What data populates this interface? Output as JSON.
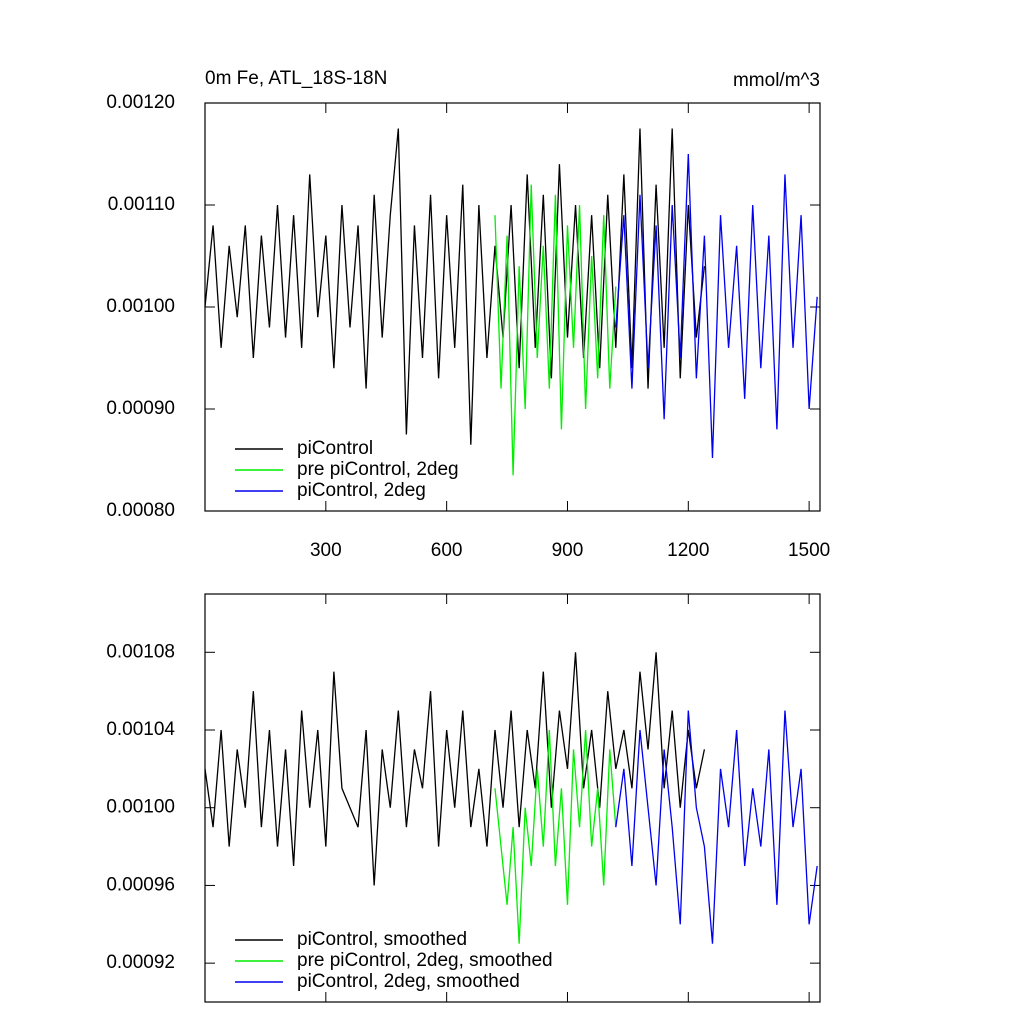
{
  "chart_data": [
    {
      "type": "line",
      "title": "0m Fe, ATL_18S-18N",
      "units": "mmol/m^3",
      "legend": "lower left",
      "xlim": [
        0,
        1527
      ],
      "xticks": [
        300,
        600,
        900,
        1200,
        1500
      ],
      "ylim": [
        0.0008,
        0.0012
      ],
      "yticks": [
        {
          "value": 0.0008,
          "label": "0.00080"
        },
        {
          "value": 0.0009,
          "label": "0.00090"
        },
        {
          "value": 0.001,
          "label": "0.00100"
        },
        {
          "value": 0.0011,
          "label": "0.00110"
        },
        {
          "value": 0.0012,
          "label": "0.00120"
        }
      ],
      "series": [
        {
          "name": "piControl",
          "color": "#000000",
          "x": [
            0,
            20,
            40,
            60,
            80,
            100,
            120,
            140,
            160,
            180,
            200,
            220,
            240,
            260,
            280,
            300,
            320,
            340,
            360,
            380,
            400,
            420,
            440,
            460,
            480,
            500,
            520,
            540,
            560,
            580,
            600,
            620,
            640,
            660,
            680,
            700,
            720,
            740,
            760,
            780,
            800,
            820,
            840,
            860,
            880,
            900,
            920,
            940,
            960,
            980,
            1000,
            1020,
            1040,
            1060,
            1080,
            1100,
            1120,
            1140,
            1160,
            1180,
            1200,
            1220,
            1240
          ],
          "values": [
            0.001,
            0.00108,
            0.00096,
            0.00106,
            0.00099,
            0.00108,
            0.00095,
            0.00107,
            0.00098,
            0.0011,
            0.00097,
            0.00109,
            0.00096,
            0.00113,
            0.00099,
            0.00107,
            0.00094,
            0.0011,
            0.00098,
            0.00108,
            0.00092,
            0.00111,
            0.00097,
            0.00109,
            0.001175,
            0.000875,
            0.00108,
            0.00095,
            0.00111,
            0.00093,
            0.00109,
            0.00096,
            0.00112,
            0.000865,
            0.0011,
            0.00095,
            0.00106,
            0.00097,
            0.0011,
            0.00094,
            0.00113,
            0.00096,
            0.00111,
            0.00093,
            0.00114,
            0.00097,
            0.0011,
            0.00095,
            0.00109,
            0.00094,
            0.00111,
            0.00096,
            0.00113,
            0.00094,
            0.001175,
            0.00092,
            0.00112,
            0.00096,
            0.001175,
            0.00093,
            0.0011,
            0.00097,
            0.00104
          ]
        },
        {
          "name": "pre piControl, 2deg",
          "color": "#00ee00",
          "x": [
            720,
            735,
            750,
            765,
            780,
            795,
            810,
            825,
            840,
            855,
            870,
            885,
            900,
            915,
            930,
            945,
            960,
            975,
            990,
            1005,
            1020
          ],
          "values": [
            0.00109,
            0.00092,
            0.00107,
            0.000835,
            0.00104,
            0.0009,
            0.00112,
            0.00095,
            0.00106,
            0.00092,
            0.00111,
            0.00088,
            0.00108,
            0.00096,
            0.0011,
            0.0009,
            0.00105,
            0.00093,
            0.00109,
            0.00092,
            0.00102
          ]
        },
        {
          "name": "piControl, 2deg",
          "color": "#0000ee",
          "x": [
            1020,
            1040,
            1060,
            1080,
            1100,
            1120,
            1140,
            1160,
            1180,
            1200,
            1220,
            1240,
            1260,
            1280,
            1300,
            1320,
            1340,
            1360,
            1380,
            1400,
            1420,
            1440,
            1460,
            1480,
            1500,
            1520
          ],
          "values": [
            0.00098,
            0.00109,
            0.00092,
            0.00111,
            0.00094,
            0.00108,
            0.00089,
            0.0011,
            0.00095,
            0.00115,
            0.00093,
            0.00107,
            0.000852,
            0.00109,
            0.00096,
            0.00106,
            0.00091,
            0.0011,
            0.00094,
            0.00107,
            0.00088,
            0.00113,
            0.00096,
            0.00109,
            0.0009,
            0.00101
          ]
        }
      ]
    },
    {
      "type": "line",
      "legend": "lower left",
      "xlim": [
        0,
        1527
      ],
      "xticks": [
        300,
        600,
        900,
        1200,
        1500
      ],
      "ylim": [
        0.0009,
        0.00111
      ],
      "yticks": [
        {
          "value": 0.00092,
          "label": "0.00092"
        },
        {
          "value": 0.00096,
          "label": "0.00096"
        },
        {
          "value": 0.001,
          "label": "0.00100"
        },
        {
          "value": 0.00104,
          "label": "0.00104"
        },
        {
          "value": 0.00108,
          "label": "0.00108"
        }
      ],
      "series": [
        {
          "name": "piControl, smoothed",
          "color": "#000000",
          "x": [
            0,
            20,
            40,
            60,
            80,
            100,
            120,
            140,
            160,
            180,
            200,
            220,
            240,
            260,
            280,
            300,
            320,
            340,
            360,
            380,
            400,
            420,
            440,
            460,
            480,
            500,
            520,
            540,
            560,
            580,
            600,
            620,
            640,
            660,
            680,
            700,
            720,
            740,
            760,
            780,
            800,
            820,
            840,
            860,
            880,
            900,
            920,
            940,
            960,
            980,
            1000,
            1020,
            1040,
            1060,
            1080,
            1100,
            1120,
            1140,
            1160,
            1180,
            1200,
            1220,
            1240
          ],
          "values": [
            0.00102,
            0.00099,
            0.00104,
            0.00098,
            0.00103,
            0.001,
            0.00106,
            0.00099,
            0.00104,
            0.00098,
            0.00103,
            0.00097,
            0.00105,
            0.001,
            0.00104,
            0.00098,
            0.00107,
            0.00101,
            0.001,
            0.00099,
            0.00104,
            0.00096,
            0.00103,
            0.001,
            0.00105,
            0.00099,
            0.00103,
            0.00101,
            0.00106,
            0.00098,
            0.00104,
            0.001,
            0.00105,
            0.00099,
            0.00102,
            0.00098,
            0.00104,
            0.001,
            0.00105,
            0.00099,
            0.00104,
            0.00101,
            0.00107,
            0.001,
            0.00105,
            0.00102,
            0.00108,
            0.00101,
            0.00104,
            0.001,
            0.00106,
            0.00102,
            0.00104,
            0.00101,
            0.00107,
            0.00103,
            0.00108,
            0.00101,
            0.00105,
            0.001,
            0.00104,
            0.00101,
            0.00103
          ]
        },
        {
          "name": "pre piControl, 2deg, smoothed",
          "color": "#00ee00",
          "x": [
            720,
            735,
            750,
            765,
            780,
            795,
            810,
            825,
            840,
            855,
            870,
            885,
            900,
            915,
            930,
            945,
            960,
            975,
            990,
            1005,
            1020
          ],
          "values": [
            0.00101,
            0.00098,
            0.00095,
            0.00099,
            0.00093,
            0.001,
            0.00097,
            0.00102,
            0.00098,
            0.00104,
            0.00097,
            0.00101,
            0.00095,
            0.00103,
            0.00099,
            0.00104,
            0.00098,
            0.00101,
            0.00096,
            0.00103,
            0.00099
          ]
        },
        {
          "name": "piControl, 2deg, smoothed",
          "color": "#0000ee",
          "x": [
            1020,
            1040,
            1060,
            1080,
            1100,
            1120,
            1140,
            1160,
            1180,
            1200,
            1220,
            1240,
            1260,
            1280,
            1300,
            1320,
            1340,
            1360,
            1380,
            1400,
            1420,
            1440,
            1460,
            1480,
            1500,
            1520
          ],
          "values": [
            0.00099,
            0.00102,
            0.00097,
            0.00104,
            0.001,
            0.00096,
            0.00103,
            0.00099,
            0.00094,
            0.00105,
            0.001,
            0.00098,
            0.00093,
            0.00102,
            0.00099,
            0.00104,
            0.00097,
            0.00101,
            0.00098,
            0.00103,
            0.00095,
            0.00105,
            0.00099,
            0.00102,
            0.00094,
            0.00097
          ]
        }
      ]
    }
  ]
}
